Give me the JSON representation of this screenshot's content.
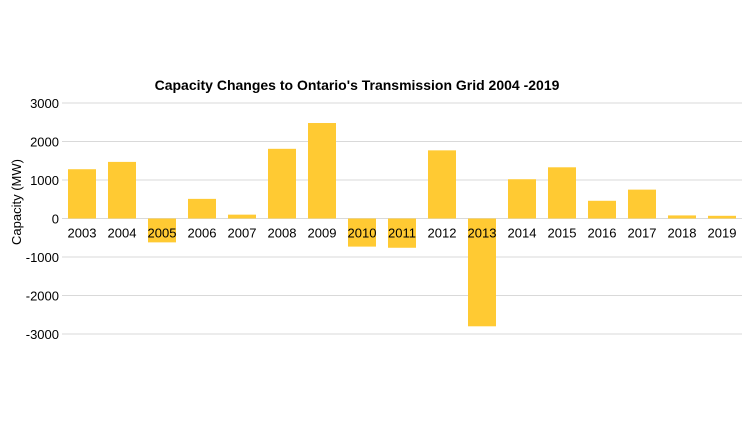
{
  "chart_data": {
    "type": "bar",
    "title": "Capacity Changes to Ontario's Transmission Grid 2004 -2019",
    "xlabel": "",
    "ylabel": "Capacity (MW)",
    "ylim": [
      -3000,
      3000
    ],
    "yticks": [
      3000,
      2000,
      1000,
      0,
      -1000,
      -2000,
      -3000
    ],
    "grid": true,
    "legend": "none",
    "bar_color": "#FFCA33",
    "categories": [
      "2003",
      "2004",
      "2005",
      "2006",
      "2007",
      "2008",
      "2009",
      "2010",
      "2011",
      "2012",
      "2013",
      "2014",
      "2015",
      "2016",
      "2017",
      "2018",
      "2019"
    ],
    "values": [
      1280,
      1470,
      -620,
      510,
      100,
      1810,
      2480,
      -730,
      -760,
      1770,
      -2800,
      1020,
      1330,
      460,
      750,
      80,
      70
    ]
  }
}
